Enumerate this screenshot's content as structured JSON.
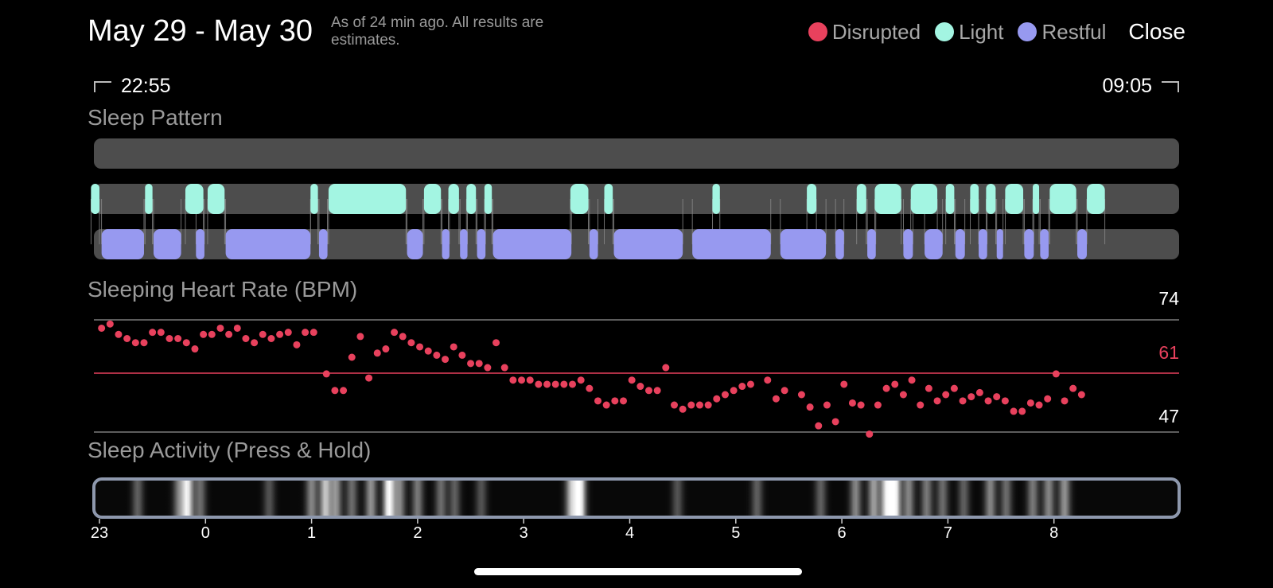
{
  "header": {
    "title": "May 29 - May 30",
    "as_of": "As of 24 min ago. All results are estimates.",
    "legend": [
      {
        "label": "Disrupted",
        "color": "#e8415d"
      },
      {
        "label": "Light",
        "color": "#a3f5e2"
      },
      {
        "label": "Restful",
        "color": "#9799f0"
      }
    ],
    "close_label": "Close"
  },
  "time_range": {
    "start": "22:55",
    "end": "09:05"
  },
  "sleep_pattern": {
    "label": "Sleep Pattern",
    "track_color": "#4d4d4d",
    "light_color": "#a3f5e2",
    "restful_color": "#9799f0",
    "light_segments": [
      [
        22.92,
        23.0
      ],
      [
        23.43,
        23.5
      ],
      [
        23.81,
        23.98
      ],
      [
        24.02,
        24.18
      ],
      [
        24.99,
        25.06
      ],
      [
        25.16,
        25.89
      ],
      [
        26.06,
        26.22
      ],
      [
        26.29,
        26.39
      ],
      [
        26.46,
        26.55
      ],
      [
        26.63,
        26.7
      ],
      [
        27.44,
        27.61
      ],
      [
        27.76,
        27.84
      ],
      [
        28.78,
        28.85
      ],
      [
        29.67,
        29.76
      ],
      [
        30.14,
        30.23
      ],
      [
        30.31,
        30.56
      ],
      [
        30.65,
        30.9
      ],
      [
        30.98,
        31.06
      ],
      [
        31.21,
        31.29
      ],
      [
        31.36,
        31.45
      ],
      [
        31.54,
        31.71
      ],
      [
        31.8,
        31.86
      ],
      [
        31.96,
        32.21
      ],
      [
        32.31,
        32.48
      ]
    ],
    "restful_segments": [
      [
        23.02,
        23.42
      ],
      [
        23.51,
        23.77
      ],
      [
        23.91,
        23.99
      ],
      [
        24.19,
        24.99
      ],
      [
        25.07,
        25.15
      ],
      [
        25.9,
        26.05
      ],
      [
        26.23,
        26.3
      ],
      [
        26.4,
        26.47
      ],
      [
        26.56,
        26.64
      ],
      [
        26.71,
        27.45
      ],
      [
        27.62,
        27.7
      ],
      [
        27.85,
        28.5
      ],
      [
        28.59,
        29.33
      ],
      [
        29.42,
        29.85
      ],
      [
        29.94,
        30.02
      ],
      [
        30.24,
        30.32
      ],
      [
        30.58,
        30.67
      ],
      [
        30.78,
        30.95
      ],
      [
        31.07,
        31.16
      ],
      [
        31.29,
        31.37
      ],
      [
        31.46,
        31.52
      ],
      [
        31.72,
        31.81
      ],
      [
        31.87,
        31.95
      ],
      [
        32.22,
        32.31
      ]
    ]
  },
  "heart_rate": {
    "label": "Sleeping Heart Rate (BPM)",
    "max": "74",
    "avg": "61",
    "min": "47",
    "dot_color": "#e8415d",
    "points": [
      [
        23.02,
        72
      ],
      [
        23.1,
        73
      ],
      [
        23.18,
        70.5
      ],
      [
        23.26,
        69.5
      ],
      [
        23.34,
        68.5
      ],
      [
        23.42,
        68.5
      ],
      [
        23.5,
        71
      ],
      [
        23.58,
        71
      ],
      [
        23.66,
        69.5
      ],
      [
        23.74,
        69.5
      ],
      [
        23.82,
        68.5
      ],
      [
        23.9,
        67
      ],
      [
        23.98,
        70.5
      ],
      [
        24.06,
        70.5
      ],
      [
        24.14,
        72
      ],
      [
        24.22,
        70.5
      ],
      [
        24.3,
        72
      ],
      [
        24.38,
        69.5
      ],
      [
        24.46,
        68.5
      ],
      [
        24.54,
        70.5
      ],
      [
        24.62,
        69.5
      ],
      [
        24.7,
        70.5
      ],
      [
        24.78,
        71
      ],
      [
        24.86,
        68
      ],
      [
        24.94,
        71
      ],
      [
        25.02,
        71
      ],
      [
        25.14,
        61
      ],
      [
        25.22,
        57
      ],
      [
        25.3,
        57
      ],
      [
        25.38,
        65
      ],
      [
        25.46,
        70
      ],
      [
        25.54,
        60
      ],
      [
        25.62,
        66
      ],
      [
        25.7,
        67
      ],
      [
        25.78,
        71
      ],
      [
        25.86,
        70
      ],
      [
        25.94,
        68.5
      ],
      [
        26.02,
        67.5
      ],
      [
        26.1,
        66.5
      ],
      [
        26.18,
        65.5
      ],
      [
        26.26,
        64.5
      ],
      [
        26.34,
        67.5
      ],
      [
        26.42,
        65.5
      ],
      [
        26.5,
        63.5
      ],
      [
        26.58,
        63.5
      ],
      [
        26.66,
        62.5
      ],
      [
        26.74,
        68.5
      ],
      [
        26.82,
        62.5
      ],
      [
        26.9,
        59.5
      ],
      [
        26.98,
        59.5
      ],
      [
        27.06,
        59.5
      ],
      [
        27.14,
        58.5
      ],
      [
        27.22,
        58.5
      ],
      [
        27.3,
        58.5
      ],
      [
        27.38,
        58.5
      ],
      [
        27.46,
        58.5
      ],
      [
        27.54,
        59.5
      ],
      [
        27.62,
        57.5
      ],
      [
        27.7,
        54.5
      ],
      [
        27.78,
        53.5
      ],
      [
        27.86,
        54.5
      ],
      [
        27.94,
        54.5
      ],
      [
        28.02,
        59.5
      ],
      [
        28.1,
        58
      ],
      [
        28.18,
        57
      ],
      [
        28.26,
        57
      ],
      [
        28.34,
        62.5
      ],
      [
        28.42,
        53.5
      ],
      [
        28.5,
        52.5
      ],
      [
        28.58,
        53.5
      ],
      [
        28.66,
        53.5
      ],
      [
        28.74,
        53.5
      ],
      [
        28.82,
        55
      ],
      [
        28.9,
        56
      ],
      [
        28.98,
        57
      ],
      [
        29.06,
        58
      ],
      [
        29.14,
        58.5
      ],
      [
        29.3,
        59.5
      ],
      [
        29.38,
        55
      ],
      [
        29.46,
        57
      ],
      [
        29.62,
        56
      ],
      [
        29.7,
        53
      ],
      [
        29.78,
        48.5
      ],
      [
        29.86,
        53.5
      ],
      [
        29.94,
        49.5
      ],
      [
        30.02,
        58.5
      ],
      [
        30.1,
        54
      ],
      [
        30.18,
        53.5
      ],
      [
        30.26,
        46.5
      ],
      [
        30.34,
        53.5
      ],
      [
        30.42,
        57.5
      ],
      [
        30.5,
        58.5
      ],
      [
        30.58,
        56
      ],
      [
        30.66,
        59.5
      ],
      [
        30.74,
        53.5
      ],
      [
        30.82,
        57.5
      ],
      [
        30.9,
        54.5
      ],
      [
        30.98,
        56
      ],
      [
        31.06,
        57.5
      ],
      [
        31.14,
        54.5
      ],
      [
        31.22,
        55.5
      ],
      [
        31.3,
        56.5
      ],
      [
        31.38,
        54.5
      ],
      [
        31.46,
        55.5
      ],
      [
        31.54,
        54.5
      ],
      [
        31.62,
        52
      ],
      [
        31.7,
        52
      ],
      [
        31.78,
        54
      ],
      [
        31.86,
        53.5
      ],
      [
        31.94,
        55
      ],
      [
        32.02,
        61
      ],
      [
        32.1,
        54.5
      ],
      [
        32.18,
        57.5
      ],
      [
        32.26,
        56
      ]
    ]
  },
  "sleep_activity": {
    "label": "Sleep Activity (Press & Hold)",
    "bright_spots": [
      [
        23.36,
        0.35
      ],
      [
        23.75,
        0.45
      ],
      [
        23.83,
        0.9
      ],
      [
        23.95,
        0.4
      ],
      [
        24.6,
        0.3
      ],
      [
        25.0,
        0.5
      ],
      [
        25.13,
        0.75
      ],
      [
        25.23,
        0.55
      ],
      [
        25.38,
        0.4
      ],
      [
        25.56,
        0.55
      ],
      [
        25.73,
        1.0
      ],
      [
        25.83,
        0.5
      ],
      [
        26.0,
        0.45
      ],
      [
        26.22,
        0.4
      ],
      [
        26.35,
        0.35
      ],
      [
        26.6,
        0.3
      ],
      [
        27.45,
        0.7
      ],
      [
        27.53,
        1.0
      ],
      [
        28.45,
        0.3
      ],
      [
        29.2,
        0.35
      ],
      [
        29.8,
        0.35
      ],
      [
        30.13,
        0.5
      ],
      [
        30.3,
        0.6
      ],
      [
        30.42,
        0.85
      ],
      [
        30.5,
        1.0
      ],
      [
        30.63,
        0.5
      ],
      [
        30.8,
        0.45
      ],
      [
        30.95,
        0.4
      ],
      [
        31.15,
        0.35
      ],
      [
        31.4,
        0.5
      ],
      [
        31.55,
        0.4
      ],
      [
        31.8,
        0.45
      ],
      [
        31.95,
        0.5
      ],
      [
        32.1,
        0.55
      ]
    ],
    "ticks": [
      "23",
      "0",
      "1",
      "2",
      "3",
      "4",
      "5",
      "6",
      "7",
      "8"
    ]
  }
}
